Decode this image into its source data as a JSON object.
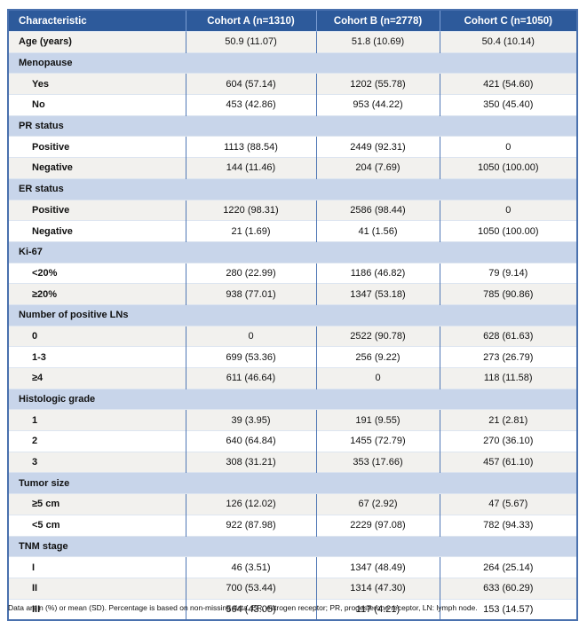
{
  "colors": {
    "header_bg": "#2d5a9b",
    "header_text": "#ffffff",
    "category_bg": "#c8d5ea",
    "row_gray": "#f2f1ee",
    "row_white": "#ffffff",
    "border_outer": "#4a71ae",
    "border_divider": "#4f77b5"
  },
  "table": {
    "columns": [
      "Characteristic",
      "Cohort A (n=1310)",
      "Cohort B (n=2778)",
      "Cohort C (n=1050)"
    ],
    "sections": [
      {
        "label": "",
        "rows": [
          {
            "label": "Age (years)",
            "values": [
              "50.9 (11.07)",
              "51.8 (10.69)",
              "50.4 (10.14)"
            ]
          }
        ]
      },
      {
        "label": "Menopause",
        "rows": [
          {
            "label": "Yes",
            "values": [
              "604 (57.14)",
              "1202 (55.78)",
              "421 (54.60)"
            ]
          },
          {
            "label": "No",
            "values": [
              "453 (42.86)",
              "953 (44.22)",
              "350 (45.40)"
            ]
          }
        ]
      },
      {
        "label": "PR status",
        "rows": [
          {
            "label": "Positive",
            "values": [
              "1113 (88.54)",
              "2449 (92.31)",
              "0"
            ]
          },
          {
            "label": "Negative",
            "values": [
              "144 (11.46)",
              "204 (7.69)",
              "1050 (100.00)"
            ]
          }
        ]
      },
      {
        "label": "ER status",
        "rows": [
          {
            "label": "Positive",
            "values": [
              "1220 (98.31)",
              "2586 (98.44)",
              "0"
            ]
          },
          {
            "label": "Negative",
            "values": [
              "21 (1.69)",
              "41 (1.56)",
              "1050 (100.00)"
            ]
          }
        ]
      },
      {
        "label": "Ki-67",
        "rows": [
          {
            "label": "<20%",
            "values": [
              "280 (22.99)",
              "1186 (46.82)",
              "79 (9.14)"
            ]
          },
          {
            "label": "≥20%",
            "values": [
              "938 (77.01)",
              "1347 (53.18)",
              "785 (90.86)"
            ]
          }
        ]
      },
      {
        "label": "Number of positive LNs",
        "rows": [
          {
            "label": "0",
            "values": [
              "0",
              "2522 (90.78)",
              "628 (61.63)"
            ]
          },
          {
            "label": "1-3",
            "values": [
              "699 (53.36)",
              "256 (9.22)",
              "273 (26.79)"
            ]
          },
          {
            "label": "≥4",
            "values": [
              "611 (46.64)",
              "0",
              "118 (11.58)"
            ]
          }
        ]
      },
      {
        "label": "Histologic grade",
        "rows": [
          {
            "label": "1",
            "values": [
              "39 (3.95)",
              "191 (9.55)",
              "21 (2.81)"
            ]
          },
          {
            "label": "2",
            "values": [
              "640 (64.84)",
              "1455 (72.79)",
              "270 (36.10)"
            ]
          },
          {
            "label": "3",
            "values": [
              "308 (31.21)",
              "353 (17.66)",
              "457 (61.10)"
            ]
          }
        ]
      },
      {
        "label": "Tumor size",
        "rows": [
          {
            "label": "≥5 cm",
            "values": [
              "126 (12.02)",
              "67 (2.92)",
              "47 (5.67)"
            ]
          },
          {
            "label": "<5 cm",
            "values": [
              "922 (87.98)",
              "2229 (97.08)",
              "782 (94.33)"
            ]
          }
        ]
      },
      {
        "label": "TNM stage",
        "rows": [
          {
            "label": "I",
            "values": [
              "46 (3.51)",
              "1347 (48.49)",
              "264 (25.14)"
            ]
          },
          {
            "label": "II",
            "values": [
              "700 (53.44)",
              "1314 (47.30)",
              "633 (60.29)"
            ]
          },
          {
            "label": "III",
            "values": [
              "564 (43.05)",
              "117 (4.21)",
              "153 (14.57)"
            ]
          }
        ]
      }
    ],
    "footnote": "Data are n (%) or mean (SD). Percentage is based on non-missing data. ER, estrogen receptor; PR, progesterone receptor, LN: lymph node."
  }
}
